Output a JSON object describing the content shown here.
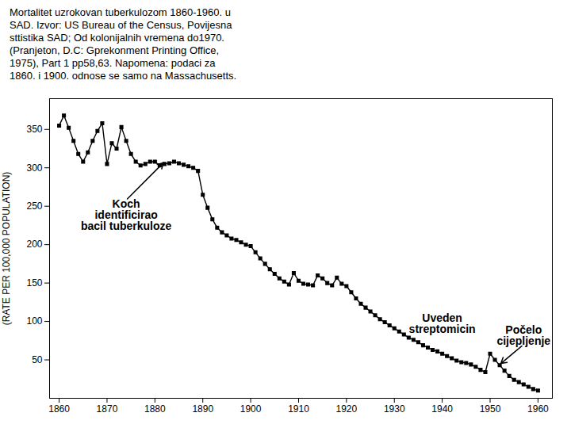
{
  "chart_data": {
    "type": "line",
    "title": "Mortalitet uzrokovan tuberkulozom 1860-1960. u\nSAD. Izvor: US Bureau of the Census, Povijesna\nsttistika SAD; Od kolonijalnih vremena do1970.\n(Pranjeton, D.C: Gprekonment Printing Office,\n1975), Part 1 pp58,63.  Napomena: podaci za\n1860. i 1900. odnose se samo na Massachusetts.",
    "ylabel": "(RATE PER 100,000 POPULATION)",
    "x": [
      1860,
      1861,
      1862,
      1863,
      1864,
      1865,
      1866,
      1867,
      1868,
      1869,
      1870,
      1871,
      1872,
      1873,
      1874,
      1875,
      1876,
      1877,
      1878,
      1879,
      1880,
      1881,
      1882,
      1883,
      1884,
      1885,
      1886,
      1887,
      1888,
      1889,
      1890,
      1891,
      1892,
      1893,
      1894,
      1895,
      1896,
      1897,
      1898,
      1899,
      1900,
      1901,
      1902,
      1903,
      1904,
      1905,
      1906,
      1907,
      1908,
      1909,
      1910,
      1911,
      1912,
      1913,
      1914,
      1915,
      1916,
      1917,
      1918,
      1919,
      1920,
      1921,
      1922,
      1923,
      1924,
      1925,
      1926,
      1927,
      1928,
      1929,
      1930,
      1931,
      1932,
      1933,
      1934,
      1935,
      1936,
      1937,
      1938,
      1939,
      1940,
      1941,
      1942,
      1943,
      1944,
      1945,
      1946,
      1947,
      1948,
      1949,
      1950,
      1951,
      1952,
      1953,
      1954,
      1955,
      1956,
      1957,
      1958,
      1959,
      1960
    ],
    "values": [
      355,
      368,
      352,
      335,
      318,
      308,
      320,
      335,
      348,
      358,
      305,
      332,
      325,
      353,
      335,
      318,
      308,
      303,
      305,
      308,
      308,
      303,
      305,
      306,
      308,
      306,
      304,
      302,
      300,
      296,
      265,
      248,
      233,
      222,
      216,
      212,
      208,
      206,
      203,
      200,
      198,
      190,
      182,
      175,
      168,
      162,
      156,
      152,
      148,
      163,
      153,
      149,
      148,
      147,
      160,
      156,
      150,
      147,
      157,
      149,
      146,
      138,
      130,
      123,
      118,
      113,
      108,
      103,
      99,
      95,
      91,
      87,
      83,
      79,
      76,
      73,
      69,
      66,
      63,
      61,
      58,
      55,
      52,
      49,
      47,
      46,
      44,
      41,
      37,
      34,
      58,
      50,
      43,
      36,
      29,
      24,
      21,
      18,
      15,
      12,
      10
    ],
    "color": "#000000",
    "marker": "square",
    "xlim": [
      1858,
      1963
    ],
    "ylim": [
      0,
      390
    ],
    "xticks": [
      1860,
      1870,
      1880,
      1890,
      1900,
      1910,
      1920,
      1930,
      1940,
      1950,
      1960
    ],
    "yticks": [
      50,
      100,
      150,
      200,
      250,
      300,
      350
    ],
    "grid": false,
    "annotations": [
      {
        "text": "Koch\nidentificirao\nbacil tuberkuloze",
        "x": 1874,
        "y": 258,
        "arrow_x": 1882,
        "arrow_y": 308,
        "anchor": "top"
      },
      {
        "text": "Uveden\nstreptomicin",
        "x": 1940,
        "y": 110,
        "anchor": "top"
      },
      {
        "text": "Počelo\ncijepljenje",
        "x": 1957,
        "y": 70,
        "arrow_x": 1952,
        "arrow_y": 44,
        "anchor": "bottom"
      }
    ]
  }
}
